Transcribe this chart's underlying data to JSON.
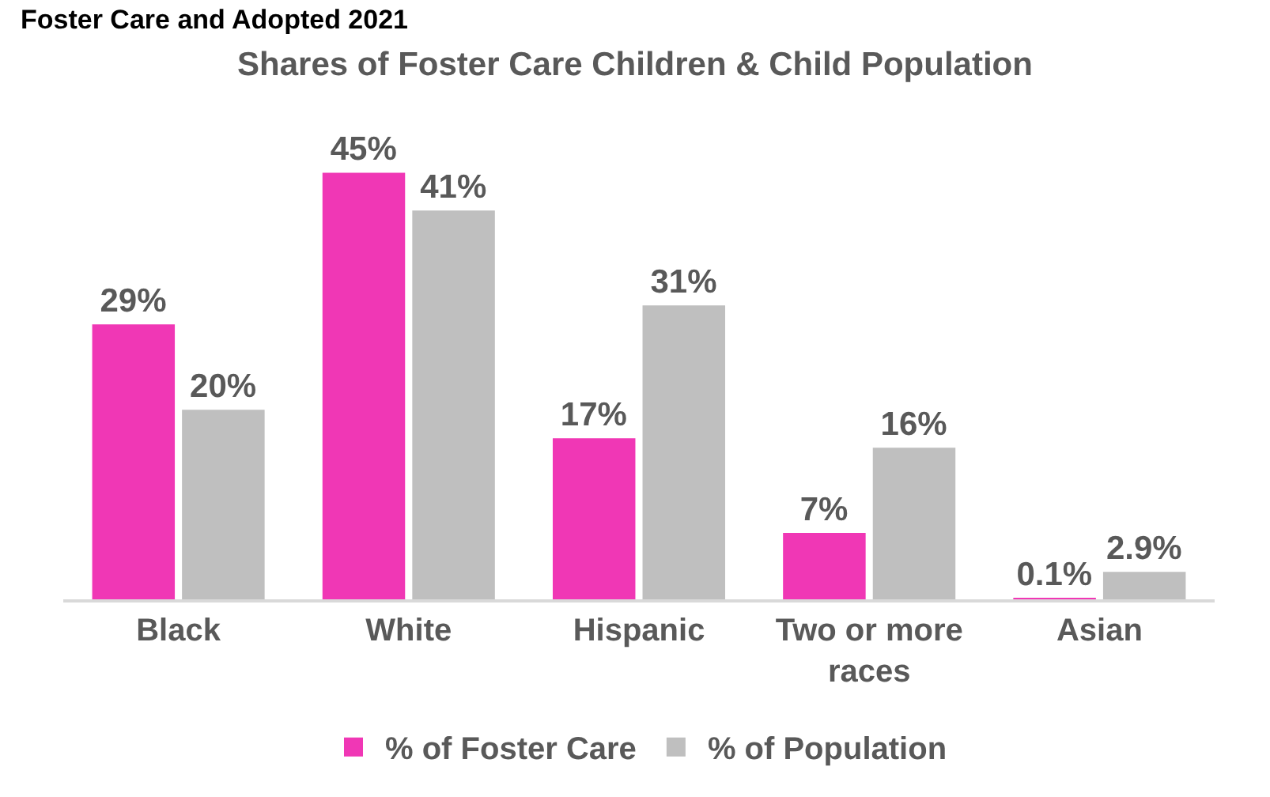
{
  "chart_data": {
    "type": "bar",
    "title": "Shares of Foster Care Children & Child Population",
    "annotations": [
      "Foster Care and Adopted 2021"
    ],
    "categories": [
      "Black",
      "White",
      "Hispanic",
      "Two or more races",
      "Asian"
    ],
    "series": [
      {
        "name": "% of Foster Care",
        "color": "#f037b5",
        "values": [
          29,
          45,
          17,
          7,
          0.1
        ],
        "value_labels": [
          "29%",
          "45%",
          "17%",
          "7%",
          "0.1%"
        ]
      },
      {
        "name": "% of Population",
        "color": "#bfbfbf",
        "values": [
          20,
          41,
          31,
          16,
          2.9
        ],
        "value_labels": [
          "20%",
          "41%",
          "31%",
          "16%",
          "2.9%"
        ]
      }
    ],
    "legend": "bottom"
  }
}
